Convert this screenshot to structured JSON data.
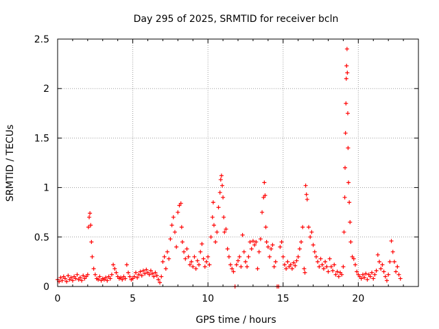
{
  "chart_data": {
    "type": "scatter",
    "title": "Day 295 of 2025, SRMTID for receiver bcln",
    "xlabel": "GPS time / hours",
    "ylabel": "SRMTID / TECUs",
    "xlim": [
      0,
      24
    ],
    "ylim": [
      0,
      2.5
    ],
    "xticks": [
      0,
      5,
      10,
      15,
      20
    ],
    "xtick_labels": [
      "0",
      "5",
      "10",
      "15",
      "20"
    ],
    "yticks": [
      0,
      0.5,
      1,
      1.5,
      2,
      2.5
    ],
    "ytick_labels": [
      "0",
      "0.5",
      "1",
      "1.5",
      "2",
      "2.5"
    ],
    "grid": true,
    "marker": "+",
    "series": [
      {
        "name": "SRMTID",
        "color": "#ff0000",
        "points": [
          [
            0.0,
            0.07
          ],
          [
            0.1,
            0.05
          ],
          [
            0.2,
            0.09
          ],
          [
            0.3,
            0.06
          ],
          [
            0.4,
            0.1
          ],
          [
            0.5,
            0.08
          ],
          [
            0.6,
            0.05
          ],
          [
            0.7,
            0.11
          ],
          [
            0.8,
            0.07
          ],
          [
            0.9,
            0.09
          ],
          [
            1.0,
            0.06
          ],
          [
            1.1,
            0.1
          ],
          [
            1.2,
            0.08
          ],
          [
            1.3,
            0.12
          ],
          [
            1.4,
            0.07
          ],
          [
            1.5,
            0.09
          ],
          [
            1.6,
            0.06
          ],
          [
            1.7,
            0.11
          ],
          [
            1.8,
            0.08
          ],
          [
            1.9,
            0.1
          ],
          [
            2.0,
            0.12
          ],
          [
            2.05,
            0.6
          ],
          [
            2.1,
            0.7
          ],
          [
            2.15,
            0.74
          ],
          [
            2.2,
            0.62
          ],
          [
            2.25,
            0.45
          ],
          [
            2.3,
            0.3
          ],
          [
            2.4,
            0.18
          ],
          [
            2.5,
            0.12
          ],
          [
            2.6,
            0.08
          ],
          [
            2.7,
            0.07
          ],
          [
            2.8,
            0.1
          ],
          [
            2.9,
            0.06
          ],
          [
            3.0,
            0.08
          ],
          [
            3.1,
            0.07
          ],
          [
            3.2,
            0.09
          ],
          [
            3.3,
            0.06
          ],
          [
            3.4,
            0.1
          ],
          [
            3.5,
            0.08
          ],
          [
            3.6,
            0.12
          ],
          [
            3.7,
            0.22
          ],
          [
            3.8,
            0.18
          ],
          [
            3.9,
            0.14
          ],
          [
            4.0,
            0.1
          ],
          [
            4.1,
            0.08
          ],
          [
            4.2,
            0.09
          ],
          [
            4.3,
            0.07
          ],
          [
            4.4,
            0.1
          ],
          [
            4.5,
            0.08
          ],
          [
            4.6,
            0.22
          ],
          [
            4.7,
            0.14
          ],
          [
            4.8,
            0.1
          ],
          [
            4.9,
            0.07
          ],
          [
            5.0,
            0.08
          ],
          [
            5.1,
            0.1
          ],
          [
            5.2,
            0.14
          ],
          [
            5.3,
            0.09
          ],
          [
            5.4,
            0.12
          ],
          [
            5.5,
            0.15
          ],
          [
            5.6,
            0.11
          ],
          [
            5.7,
            0.16
          ],
          [
            5.8,
            0.13
          ],
          [
            5.9,
            0.17
          ],
          [
            6.0,
            0.14
          ],
          [
            6.1,
            0.12
          ],
          [
            6.2,
            0.16
          ],
          [
            6.3,
            0.13
          ],
          [
            6.4,
            0.1
          ],
          [
            6.5,
            0.14
          ],
          [
            6.6,
            0.11
          ],
          [
            6.7,
            0.07
          ],
          [
            6.8,
            0.04
          ],
          [
            6.9,
            0.1
          ],
          [
            7.0,
            0.25
          ],
          [
            7.1,
            0.3
          ],
          [
            7.2,
            0.18
          ],
          [
            7.3,
            0.35
          ],
          [
            7.4,
            0.28
          ],
          [
            7.5,
            0.48
          ],
          [
            7.6,
            0.62
          ],
          [
            7.7,
            0.7
          ],
          [
            7.8,
            0.55
          ],
          [
            7.9,
            0.4
          ],
          [
            8.0,
            0.75
          ],
          [
            8.1,
            0.82
          ],
          [
            8.2,
            0.84
          ],
          [
            8.25,
            0.6
          ],
          [
            8.3,
            0.45
          ],
          [
            8.4,
            0.35
          ],
          [
            8.5,
            0.28
          ],
          [
            8.6,
            0.38
          ],
          [
            8.7,
            0.3
          ],
          [
            8.8,
            0.22
          ],
          [
            8.9,
            0.25
          ],
          [
            9.0,
            0.2
          ],
          [
            9.1,
            0.3
          ],
          [
            9.2,
            0.18
          ],
          [
            9.3,
            0.26
          ],
          [
            9.4,
            0.22
          ],
          [
            9.5,
            0.35
          ],
          [
            9.6,
            0.43
          ],
          [
            9.7,
            0.28
          ],
          [
            9.8,
            0.2
          ],
          [
            9.9,
            0.25
          ],
          [
            10.0,
            0.3
          ],
          [
            10.1,
            0.22
          ],
          [
            10.2,
            0.5
          ],
          [
            10.3,
            0.7
          ],
          [
            10.35,
            0.85
          ],
          [
            10.4,
            0.62
          ],
          [
            10.5,
            0.45
          ],
          [
            10.6,
            0.55
          ],
          [
            10.7,
            0.8
          ],
          [
            10.8,
            0.95
          ],
          [
            10.85,
            1.08
          ],
          [
            10.9,
            1.12
          ],
          [
            10.95,
            1.02
          ],
          [
            11.0,
            0.9
          ],
          [
            11.05,
            0.7
          ],
          [
            11.1,
            0.55
          ],
          [
            11.2,
            0.58
          ],
          [
            11.3,
            0.38
          ],
          [
            11.4,
            0.3
          ],
          [
            11.5,
            0.22
          ],
          [
            11.6,
            0.18
          ],
          [
            11.7,
            0.15
          ],
          [
            11.8,
            0.0
          ],
          [
            11.9,
            0.22
          ],
          [
            12.0,
            0.26
          ],
          [
            12.1,
            0.3
          ],
          [
            12.2,
            0.2
          ],
          [
            12.3,
            0.52
          ],
          [
            12.4,
            0.35
          ],
          [
            12.5,
            0.25
          ],
          [
            12.6,
            0.2
          ],
          [
            12.7,
            0.3
          ],
          [
            12.8,
            0.45
          ],
          [
            12.9,
            0.38
          ],
          [
            13.0,
            0.46
          ],
          [
            13.1,
            0.42
          ],
          [
            13.2,
            0.45
          ],
          [
            13.3,
            0.18
          ],
          [
            13.4,
            0.35
          ],
          [
            13.5,
            0.48
          ],
          [
            13.6,
            0.75
          ],
          [
            13.7,
            0.9
          ],
          [
            13.75,
            1.05
          ],
          [
            13.8,
            0.92
          ],
          [
            13.85,
            0.6
          ],
          [
            13.9,
            0.45
          ],
          [
            14.0,
            0.4
          ],
          [
            14.1,
            0.3
          ],
          [
            14.2,
            0.38
          ],
          [
            14.3,
            0.42
          ],
          [
            14.4,
            0.2
          ],
          [
            14.5,
            0.25
          ],
          [
            14.6,
            0.0
          ],
          [
            14.7,
            0.0
          ],
          [
            14.8,
            0.4
          ],
          [
            14.9,
            0.45
          ],
          [
            15.0,
            0.3
          ],
          [
            15.1,
            0.22
          ],
          [
            15.2,
            0.18
          ],
          [
            15.3,
            0.25
          ],
          [
            15.4,
            0.2
          ],
          [
            15.5,
            0.22
          ],
          [
            15.6,
            0.18
          ],
          [
            15.7,
            0.24
          ],
          [
            15.8,
            0.21
          ],
          [
            15.9,
            0.26
          ],
          [
            16.0,
            0.3
          ],
          [
            16.1,
            0.38
          ],
          [
            16.2,
            0.45
          ],
          [
            16.3,
            0.6
          ],
          [
            16.4,
            0.18
          ],
          [
            16.45,
            0.14
          ],
          [
            16.5,
            1.02
          ],
          [
            16.55,
            0.93
          ],
          [
            16.6,
            0.88
          ],
          [
            16.7,
            0.6
          ],
          [
            16.8,
            0.5
          ],
          [
            16.9,
            0.55
          ],
          [
            17.0,
            0.42
          ],
          [
            17.1,
            0.35
          ],
          [
            17.2,
            0.3
          ],
          [
            17.3,
            0.25
          ],
          [
            17.4,
            0.2
          ],
          [
            17.5,
            0.28
          ],
          [
            17.6,
            0.22
          ],
          [
            17.7,
            0.18
          ],
          [
            17.8,
            0.25
          ],
          [
            17.9,
            0.2
          ],
          [
            18.0,
            0.15
          ],
          [
            18.1,
            0.28
          ],
          [
            18.2,
            0.2
          ],
          [
            18.3,
            0.16
          ],
          [
            18.4,
            0.22
          ],
          [
            18.5,
            0.12
          ],
          [
            18.6,
            0.15
          ],
          [
            18.7,
            0.1
          ],
          [
            18.8,
            0.14
          ],
          [
            18.9,
            0.12
          ],
          [
            19.0,
            0.2
          ],
          [
            19.05,
            0.55
          ],
          [
            19.1,
            0.9
          ],
          [
            19.12,
            1.2
          ],
          [
            19.15,
            1.55
          ],
          [
            19.18,
            1.85
          ],
          [
            19.2,
            2.1
          ],
          [
            19.22,
            2.23
          ],
          [
            19.25,
            2.4
          ],
          [
            19.27,
            2.16
          ],
          [
            19.3,
            1.75
          ],
          [
            19.32,
            1.4
          ],
          [
            19.35,
            1.05
          ],
          [
            19.4,
            0.85
          ],
          [
            19.45,
            0.65
          ],
          [
            19.5,
            0.45
          ],
          [
            19.6,
            0.3
          ],
          [
            19.7,
            0.28
          ],
          [
            19.8,
            0.22
          ],
          [
            19.9,
            0.15
          ],
          [
            20.0,
            0.12
          ],
          [
            20.1,
            0.1
          ],
          [
            20.2,
            0.08
          ],
          [
            20.3,
            0.12
          ],
          [
            20.4,
            0.09
          ],
          [
            20.5,
            0.13
          ],
          [
            20.6,
            0.07
          ],
          [
            20.7,
            0.12
          ],
          [
            20.8,
            0.1
          ],
          [
            20.9,
            0.14
          ],
          [
            21.0,
            0.08
          ],
          [
            21.1,
            0.12
          ],
          [
            21.2,
            0.16
          ],
          [
            21.3,
            0.32
          ],
          [
            21.4,
            0.25
          ],
          [
            21.5,
            0.18
          ],
          [
            21.6,
            0.22
          ],
          [
            21.7,
            0.15
          ],
          [
            21.8,
            0.1
          ],
          [
            21.9,
            0.06
          ],
          [
            22.0,
            0.12
          ],
          [
            22.1,
            0.25
          ],
          [
            22.2,
            0.46
          ],
          [
            22.3,
            0.35
          ],
          [
            22.4,
            0.25
          ],
          [
            22.5,
            0.15
          ],
          [
            22.6,
            0.2
          ],
          [
            22.7,
            0.12
          ],
          [
            22.8,
            0.08
          ]
        ]
      }
    ]
  }
}
